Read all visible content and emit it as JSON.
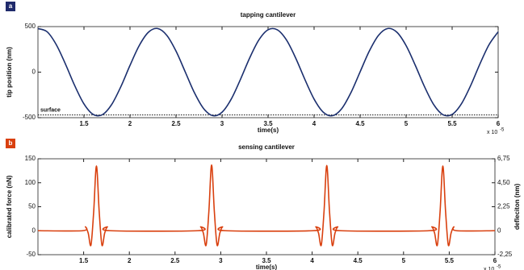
{
  "chart_data": [
    {
      "type": "line",
      "panel_label": "a",
      "panel_color": "#1f2a6b",
      "title": "tapping cantilever",
      "x_label": "time(s)",
      "y_label": "tip position (nm)",
      "x_multiplier": "x 10",
      "x_exponent": "-5",
      "x": [
        1.0,
        1.1,
        1.2,
        1.3,
        1.4,
        1.5,
        1.6,
        1.7,
        1.8,
        1.9,
        2.0,
        2.1,
        2.2,
        2.3,
        2.4,
        2.5,
        2.6,
        2.7,
        2.8,
        2.9,
        3.0,
        3.1,
        3.2,
        3.3,
        3.4,
        3.5,
        3.6,
        3.7,
        3.8,
        3.9,
        4.0,
        4.1,
        4.2,
        4.3,
        4.4,
        4.5,
        4.6,
        4.7,
        4.8,
        4.9,
        5.0,
        5.1,
        5.2,
        5.3,
        5.4,
        5.5,
        5.6,
        5.7,
        5.8,
        5.9,
        6.0
      ],
      "series": [
        {
          "color": "#1b2f6e",
          "values": [
            478,
            443,
            300,
            86,
            -149,
            -349,
            -464,
            -467,
            -357,
            -161,
            74,
            291,
            438,
            479,
            404,
            231,
            3,
            -226,
            -400,
            -478,
            -440,
            -296,
            -80,
            155,
            353,
            465,
            465,
            353,
            155,
            -80,
            -296,
            -440,
            -478,
            -401,
            -226,
            3,
            231,
            404,
            479,
            438,
            291,
            74,
            -160,
            -357,
            -467,
            -464,
            -349,
            -150,
            86,
            300,
            443
          ]
        }
      ],
      "surface_level": -470,
      "surface_label": "surface",
      "xlim": [
        1.0,
        6.0
      ],
      "xticks": [
        1.5,
        2,
        2.5,
        3,
        3.5,
        4,
        4.5,
        5,
        5.5,
        6
      ],
      "ylim": [
        -500,
        500
      ],
      "yticks": [
        -500,
        0,
        500
      ]
    },
    {
      "type": "line",
      "panel_label": "b",
      "panel_color": "#d9400f",
      "title": "sensing cantilever",
      "x_label": "time(s)",
      "y_label": "calibrated force (nN)",
      "y2_label": "defleciton (nm)",
      "x_multiplier": "x 10",
      "x_exponent": "-5",
      "x": [
        1.0,
        1.49,
        1.52,
        1.55,
        1.58,
        1.61,
        1.64,
        1.67,
        1.7,
        1.73,
        1.76,
        1.79,
        2.75,
        2.78,
        2.81,
        2.84,
        2.87,
        2.9,
        2.93,
        2.96,
        2.99,
        3.02,
        3.05,
        4.01,
        4.04,
        4.07,
        4.1,
        4.13,
        4.16,
        4.19,
        4.22,
        4.25,
        4.28,
        4.31,
        5.28,
        5.31,
        5.34,
        5.37,
        5.4,
        5.43,
        5.46,
        5.49,
        5.52,
        5.55,
        5.58,
        6.0
      ],
      "series": [
        {
          "color": "#d9400f",
          "values": [
            0,
            0,
            8,
            -5,
            -30,
            40,
            135,
            40,
            -30,
            -5,
            8,
            0,
            0,
            8,
            -5,
            -30,
            40,
            137,
            40,
            -30,
            -5,
            8,
            0,
            0,
            8,
            -5,
            -30,
            40,
            136,
            40,
            -30,
            -5,
            8,
            0,
            0,
            8,
            -5,
            -30,
            40,
            135,
            40,
            -30,
            -5,
            8,
            0,
            0
          ]
        }
      ],
      "xlim": [
        1.0,
        6.0
      ],
      "xticks": [
        1.5,
        2,
        2.5,
        3,
        3.5,
        4,
        4.5,
        5,
        5.5,
        6
      ],
      "ylim": [
        -50,
        150
      ],
      "yticks": [
        -50,
        0,
        50,
        100,
        150
      ],
      "y2lim": [
        -2.25,
        6.75
      ],
      "y2ticks": [
        {
          "value": -2.25,
          "label": "-2,25"
        },
        0,
        {
          "value": 2.25,
          "label": "2,25"
        },
        {
          "value": 4.5,
          "label": "4,50"
        },
        {
          "value": 6.75,
          "label": "6,75"
        }
      ]
    }
  ]
}
